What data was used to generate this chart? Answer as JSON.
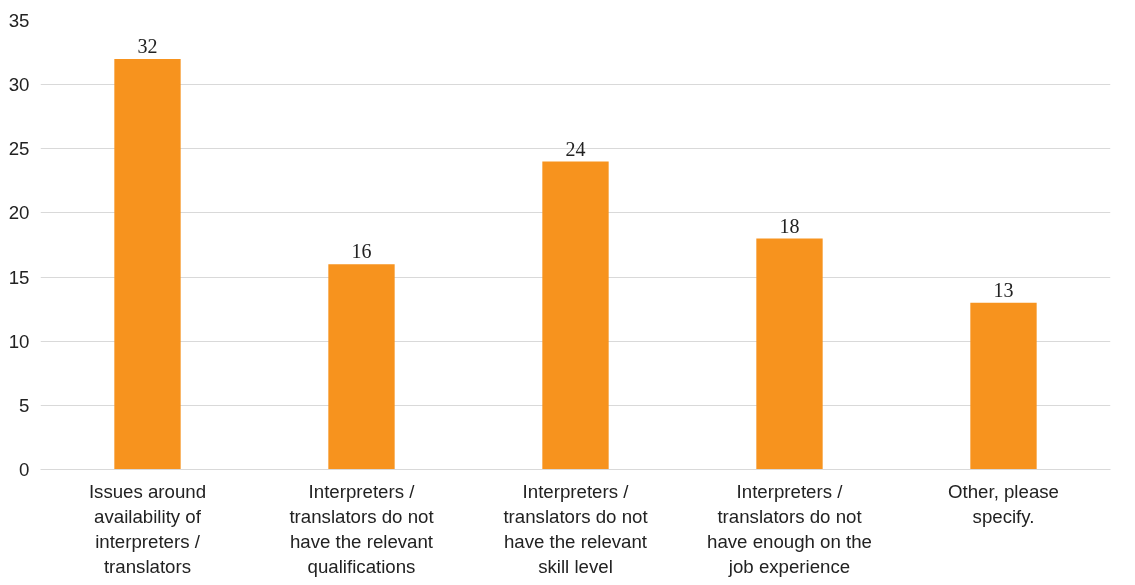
{
  "chart_data": {
    "type": "bar",
    "categories": [
      "Issues around availability of interpreters / translators",
      "Interpreters / translators do not have the relevant qualifications",
      "Interpreters / translators do not have the relevant skill level",
      "Interpreters / translators do not have enough on the job experience",
      "Other, please specify."
    ],
    "values": [
      32,
      16,
      24,
      18,
      13
    ],
    "color": "#f7931e",
    "ylim": [
      0,
      35
    ],
    "yticks": [
      0,
      5,
      10,
      15,
      20,
      25,
      30,
      35
    ],
    "grid": "y",
    "data_labels": true
  }
}
